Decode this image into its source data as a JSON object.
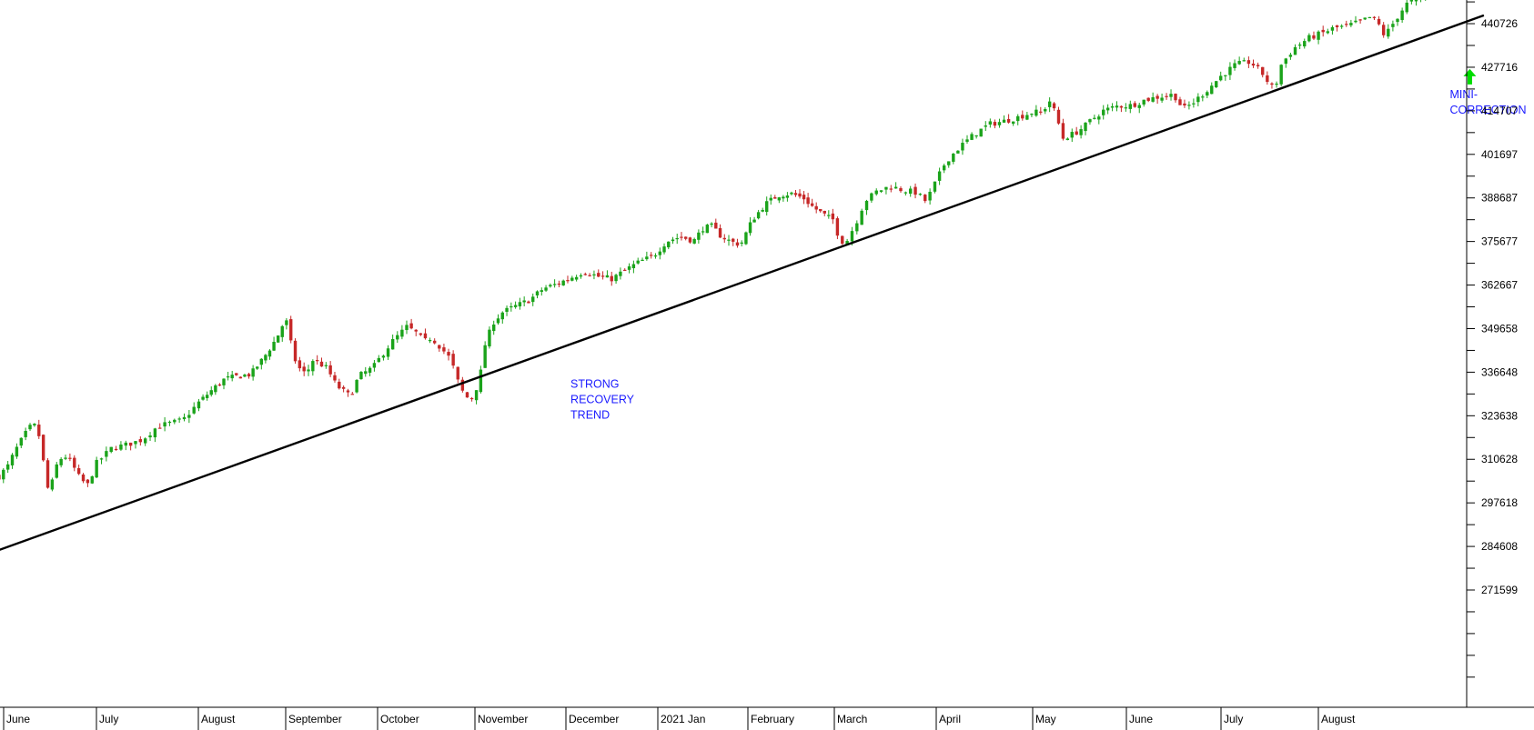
{
  "chart_data": {
    "type": "candlestick",
    "title": "",
    "xlabel": "",
    "ylabel": "",
    "colors": {
      "up": "#1aa31a",
      "down": "#c62828",
      "trend": "#000000",
      "annotation": "#1a1aff",
      "arrow": "#00dd00",
      "axis": "#000000"
    },
    "y_axis": {
      "position": "right",
      "ticks": [
        271599,
        284608,
        297618,
        310628,
        323638,
        336648,
        349658,
        362667,
        375677,
        388687,
        401697,
        414707,
        427716,
        440726
      ],
      "range": [
        258590,
        449400
      ]
    },
    "x_axis": {
      "labels": [
        "June",
        "July",
        "August",
        "September",
        "October",
        "November",
        "December",
        "2021 Jan",
        "February",
        "March",
        "April",
        "May",
        "June",
        "July",
        "August"
      ]
    },
    "trendline": {
      "from": {
        "month_index": -0.05,
        "value": 283540
      },
      "to": {
        "month_index": 15.7,
        "value": 443190
      }
    },
    "price_anchors": [
      [
        -0.05,
        305500
      ],
      [
        0.05,
        308800
      ],
      [
        0.12,
        313000
      ],
      [
        0.22,
        317700
      ],
      [
        0.3,
        320800
      ],
      [
        0.36,
        320500
      ],
      [
        0.42,
        312000
      ],
      [
        0.46,
        301500
      ],
      [
        0.52,
        303500
      ],
      [
        0.58,
        309700
      ],
      [
        0.65,
        311800
      ],
      [
        0.72,
        310200
      ],
      [
        0.8,
        305800
      ],
      [
        0.9,
        302600
      ],
      [
        1.0,
        309500
      ],
      [
        1.15,
        314000
      ],
      [
        1.3,
        315000
      ],
      [
        1.45,
        316500
      ],
      [
        1.6,
        320500
      ],
      [
        1.75,
        321600
      ],
      [
        1.85,
        322400
      ],
      [
        2.0,
        327500
      ],
      [
        2.15,
        331200
      ],
      [
        2.3,
        334600
      ],
      [
        2.45,
        335400
      ],
      [
        2.6,
        336000
      ],
      [
        2.75,
        341000
      ],
      [
        2.9,
        347000
      ],
      [
        3.0,
        352800
      ],
      [
        3.05,
        346000
      ],
      [
        3.12,
        338500
      ],
      [
        3.22,
        336000
      ],
      [
        3.3,
        340500
      ],
      [
        3.45,
        337800
      ],
      [
        3.55,
        332700
      ],
      [
        3.65,
        330500
      ],
      [
        3.7,
        329500
      ],
      [
        3.8,
        335600
      ],
      [
        3.95,
        338000
      ],
      [
        4.05,
        342000
      ],
      [
        4.15,
        345800
      ],
      [
        4.3,
        350200
      ],
      [
        4.4,
        348300
      ],
      [
        4.48,
        345800
      ],
      [
        4.55,
        347000
      ],
      [
        4.65,
        344000
      ],
      [
        4.75,
        340500
      ],
      [
        4.85,
        331700
      ],
      [
        4.95,
        328000
      ],
      [
        5.05,
        334000
      ],
      [
        5.1,
        344000
      ],
      [
        5.2,
        351500
      ],
      [
        5.3,
        354500
      ],
      [
        5.45,
        356400
      ],
      [
        5.6,
        358200
      ],
      [
        5.75,
        361600
      ],
      [
        5.9,
        363000
      ],
      [
        6.05,
        364800
      ],
      [
        6.2,
        366800
      ],
      [
        6.35,
        365200
      ],
      [
        6.5,
        364500
      ],
      [
        6.65,
        367200
      ],
      [
        6.8,
        369600
      ],
      [
        6.95,
        371300
      ],
      [
        7.1,
        375800
      ],
      [
        7.25,
        377100
      ],
      [
        7.4,
        375900
      ],
      [
        7.5,
        379600
      ],
      [
        7.6,
        380200
      ],
      [
        7.7,
        377300
      ],
      [
        7.82,
        375500
      ],
      [
        7.92,
        374800
      ],
      [
        8.05,
        382100
      ],
      [
        8.2,
        386800
      ],
      [
        8.35,
        389500
      ],
      [
        8.5,
        390000
      ],
      [
        8.65,
        388500
      ],
      [
        8.75,
        386000
      ],
      [
        8.85,
        384200
      ],
      [
        8.92,
        383000
      ],
      [
        9.0,
        382000
      ],
      [
        9.05,
        375800
      ],
      [
        9.12,
        375700
      ],
      [
        9.22,
        381800
      ],
      [
        9.3,
        387800
      ],
      [
        9.42,
        390700
      ],
      [
        9.55,
        392200
      ],
      [
        9.65,
        391200
      ],
      [
        9.8,
        390300
      ],
      [
        9.9,
        387600
      ],
      [
        10.0,
        393800
      ],
      [
        10.1,
        399600
      ],
      [
        10.25,
        404100
      ],
      [
        10.4,
        407800
      ],
      [
        10.55,
        410700
      ],
      [
        10.7,
        411600
      ],
      [
        10.85,
        412800
      ],
      [
        11.0,
        414300
      ],
      [
        11.1,
        414200
      ],
      [
        11.18,
        417700
      ],
      [
        11.25,
        413500
      ],
      [
        11.32,
        406500
      ],
      [
        11.45,
        408000
      ],
      [
        11.55,
        410000
      ],
      [
        11.62,
        411800
      ],
      [
        11.75,
        414700
      ],
      [
        11.9,
        416100
      ],
      [
        12.05,
        416300
      ],
      [
        12.2,
        418000
      ],
      [
        12.35,
        418900
      ],
      [
        12.5,
        419600
      ],
      [
        12.6,
        415200
      ],
      [
        12.7,
        417000
      ],
      [
        12.85,
        420800
      ],
      [
        13.0,
        425100
      ],
      [
        13.15,
        428500
      ],
      [
        13.3,
        429300
      ],
      [
        13.42,
        426000
      ],
      [
        13.5,
        422500
      ],
      [
        13.55,
        421000
      ],
      [
        13.62,
        428600
      ],
      [
        13.75,
        433400
      ],
      [
        13.9,
        436400
      ],
      [
        14.05,
        438000
      ],
      [
        14.15,
        439300
      ],
      [
        14.3,
        440100
      ],
      [
        14.45,
        441500
      ],
      [
        14.55,
        442900
      ],
      [
        14.62,
        440400
      ],
      [
        14.68,
        437000
      ],
      [
        14.75,
        440000
      ],
      [
        14.82,
        443100
      ],
      [
        14.9,
        446500
      ],
      [
        15.0,
        447900
      ],
      [
        15.1,
        448800
      ]
    ],
    "annotations": [
      {
        "lines": [
          "STRONG",
          "RECOVERY",
          "TREND"
        ],
        "month_index": 6.05,
        "value": 332000
      },
      {
        "lines": [
          "MINI-",
          "CORRECTION"
        ],
        "month_index": 15.35,
        "value": 418500,
        "arrow": "up"
      }
    ]
  }
}
